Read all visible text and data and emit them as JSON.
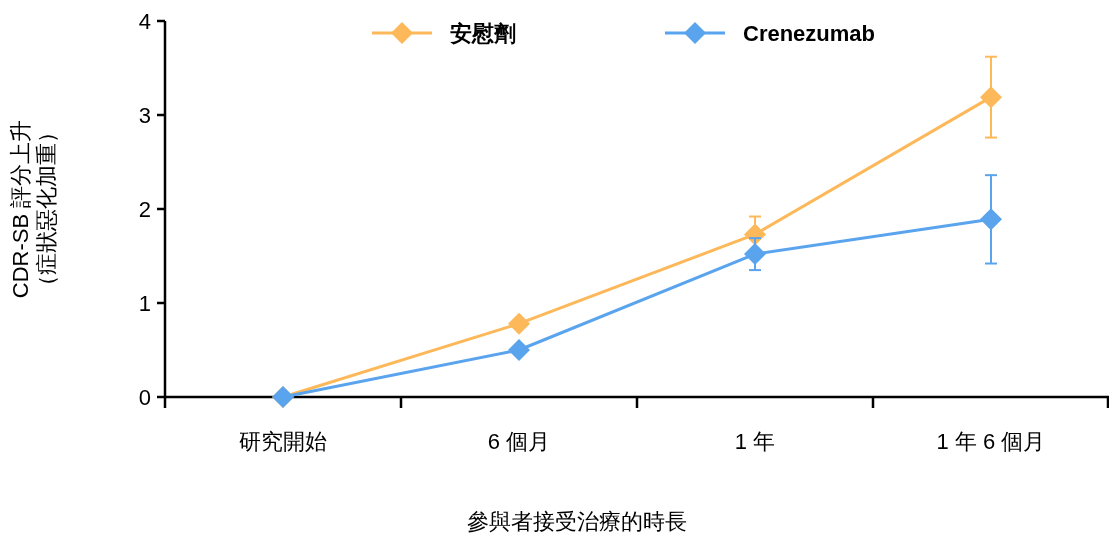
{
  "chart_data": {
    "type": "line",
    "xlabel": "參與者接受治療的時長",
    "ylabel": "CDR-SB 評分上升（症狀惡化加重）",
    "categories": [
      "研究開始",
      "6 個月",
      "1 年",
      "1 年 6 個月"
    ],
    "series": [
      {
        "name": "安慰劑",
        "color": "#fdb85a",
        "values": [
          0,
          0.78,
          1.73,
          3.19
        ],
        "errors": [
          null,
          null,
          0.19,
          0.43
        ]
      },
      {
        "name": "Crenezumab",
        "color": "#5aa4ee",
        "values": [
          0,
          0.5,
          1.52,
          1.89
        ],
        "errors": [
          null,
          null,
          0.17,
          0.47
        ]
      }
    ],
    "ylim": [
      0,
      4
    ],
    "yticks": [
      0,
      1,
      2,
      3,
      4
    ],
    "grid": false,
    "legend": "top",
    "marker": "diamond",
    "line_style": "solid"
  }
}
